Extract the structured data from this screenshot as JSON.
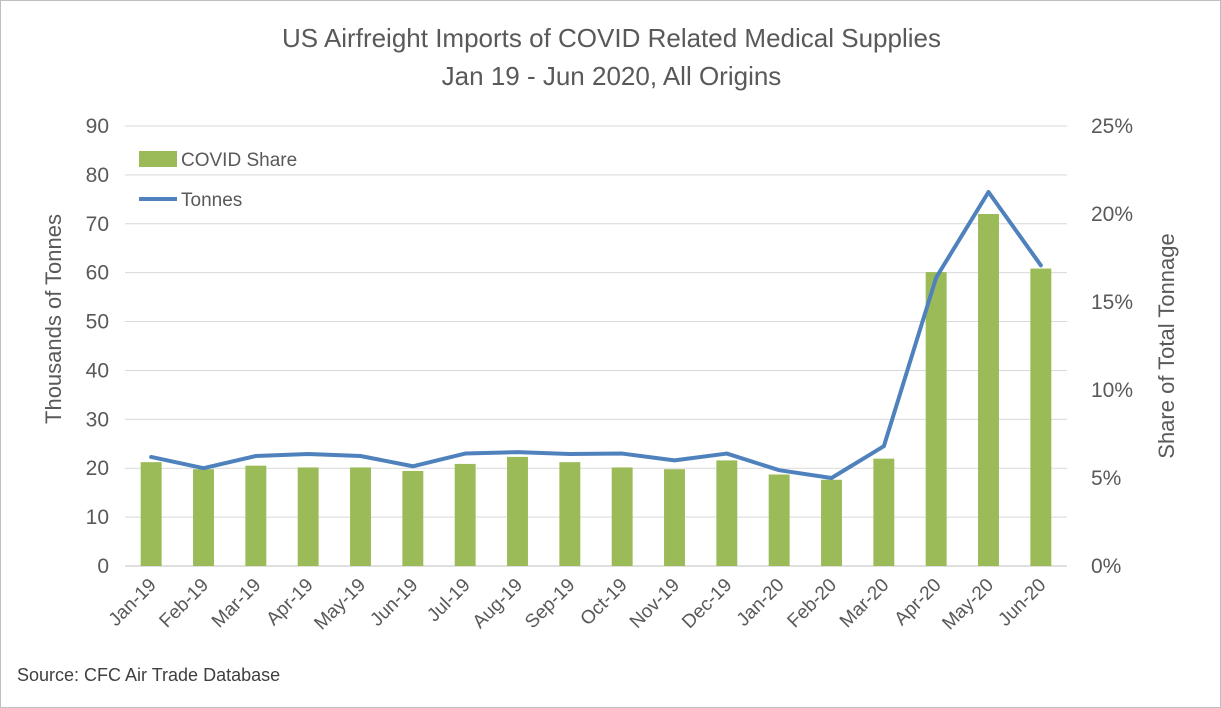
{
  "chart_data": {
    "type": "bar+line",
    "title": "US Airfreight Imports of COVID Related Medical Supplies",
    "subtitle": "Jan 19 - Jun 2020, All Origins",
    "categories": [
      "Jan-19",
      "Feb-19",
      "Mar-19",
      "Apr-19",
      "May-19",
      "Jun-19",
      "Jul-19",
      "Aug-19",
      "Sep-19",
      "Oct-19",
      "Nov-19",
      "Dec-19",
      "Jan-20",
      "Feb-20",
      "Mar-20",
      "Apr-20",
      "May-20",
      "Jun-20"
    ],
    "series": [
      {
        "name": "COVID Share",
        "type": "bar",
        "axis": "right",
        "color": "#9bbb59",
        "values": [
          5.9,
          5.5,
          5.7,
          5.6,
          5.6,
          5.4,
          5.8,
          6.2,
          5.9,
          5.6,
          5.5,
          6.0,
          5.2,
          4.9,
          6.1,
          16.7,
          20.0,
          16.9
        ]
      },
      {
        "name": "Tonnes",
        "type": "line",
        "axis": "left",
        "color": "#4f81bd",
        "values": [
          22.3,
          20.0,
          22.5,
          22.9,
          22.5,
          20.4,
          23.0,
          23.3,
          22.9,
          23.0,
          21.6,
          23.0,
          19.6,
          18.0,
          24.5,
          59.0,
          76.5,
          61.5
        ]
      }
    ],
    "ylabel": "Thousands of Tonnes",
    "ylim": [
      0,
      90
    ],
    "yticks": [
      "0",
      "10",
      "20",
      "30",
      "40",
      "50",
      "60",
      "70",
      "80",
      "90"
    ],
    "y2label": "Share of Total Tonnage",
    "y2lim": [
      0,
      25
    ],
    "y2ticks": [
      "0%",
      "5%",
      "10%",
      "15%",
      "20%",
      "25%"
    ],
    "grid": true,
    "legend_position": "top-left"
  },
  "source": "Source: CFC Air Trade Database"
}
